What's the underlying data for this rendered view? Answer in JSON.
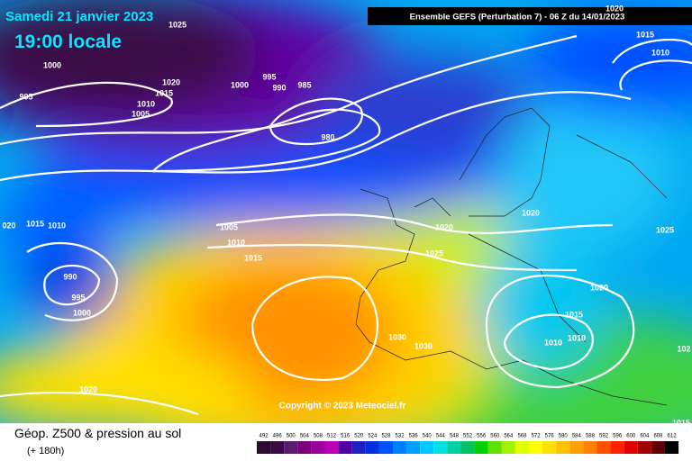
{
  "header": {
    "date": "Samedi 21 janvier 2023",
    "time": "19:00 locale",
    "run": "Ensemble GEFS  (Perturbation 7)  -  06 Z du 14/01/2023",
    "copyright": "Copyright © 2023 Meteociel.fr"
  },
  "legend": {
    "title": "Géop. Z500 & pression au sol",
    "lead": "(+ 180h)",
    "scale": [
      492,
      496,
      500,
      504,
      508,
      512,
      516,
      520,
      524,
      528,
      532,
      536,
      540,
      544,
      548,
      552,
      556,
      560,
      564,
      568,
      572,
      576,
      580,
      584,
      588,
      592,
      596,
      600,
      604,
      608,
      612
    ]
  },
  "isobars": [
    "1025",
    "1000",
    "995",
    "1020",
    "1015",
    "1010",
    "1005",
    "1000",
    "995",
    "990",
    "985",
    "980",
    "1015",
    "1010",
    "1020",
    "1020",
    "1025",
    "1020",
    "1025",
    "1020",
    "1015",
    "1010",
    "1010",
    "1030",
    "1030",
    "1005",
    "1010",
    "1015",
    "020",
    "1015",
    "1010",
    "990",
    "995",
    "1000",
    "1020",
    "102",
    "1015"
  ]
}
